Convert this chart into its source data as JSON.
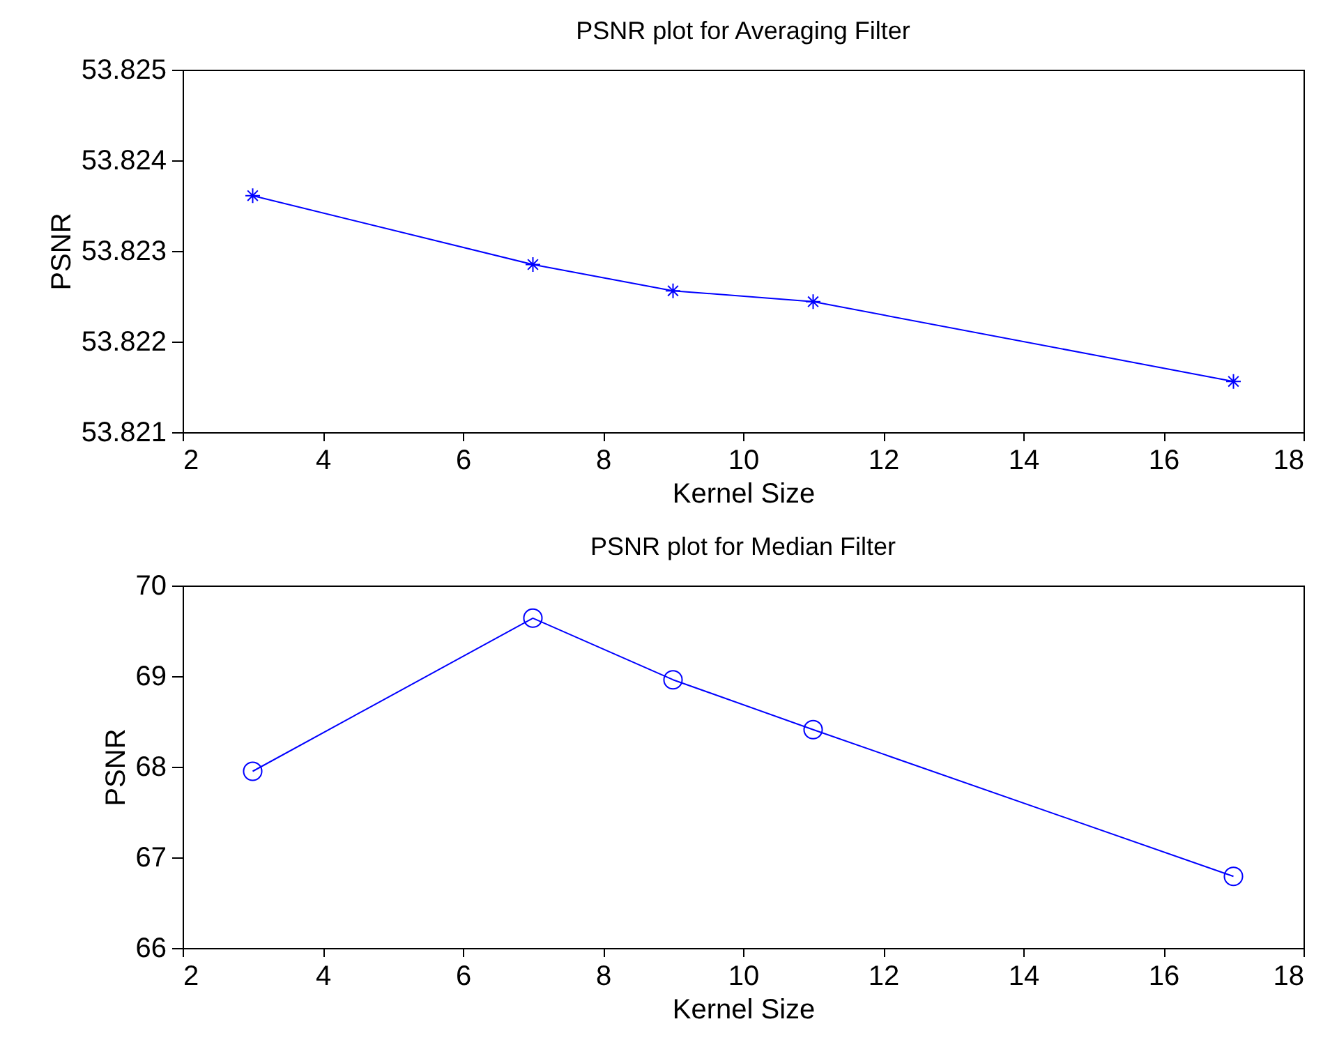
{
  "chart_data": [
    {
      "type": "line",
      "title": "PSNR plot for Averaging Filter",
      "xlabel": "Kernel Size",
      "ylabel": "PSNR",
      "x": [
        3,
        7,
        9,
        11,
        17
      ],
      "series": [
        {
          "color": "#0000ff",
          "values": [
            53.82361,
            53.82285,
            53.82256,
            53.82244,
            53.82156
          ]
        }
      ],
      "xlim": [
        2,
        18
      ],
      "xticks": [
        2,
        4,
        6,
        8,
        10,
        12,
        14,
        16,
        18
      ],
      "ylim": [
        53.821,
        53.825
      ],
      "yticks": [
        53.821,
        53.822,
        53.823,
        53.824,
        53.825
      ],
      "marker": "cross"
    },
    {
      "type": "line",
      "title": "PSNR plot for Median Filter",
      "xlabel": "Kernel Size",
      "ylabel": "PSNR",
      "x": [
        3,
        7,
        9,
        11,
        17
      ],
      "series": [
        {
          "color": "#0000ff",
          "values": [
            67.95,
            69.64,
            68.96,
            68.41,
            66.79
          ]
        }
      ],
      "xlim": [
        2,
        18
      ],
      "xticks": [
        2,
        4,
        6,
        8,
        10,
        12,
        14,
        16,
        18
      ],
      "ylim": [
        66,
        70
      ],
      "yticks": [
        66,
        67,
        68,
        69,
        70
      ],
      "marker": "circle"
    }
  ]
}
